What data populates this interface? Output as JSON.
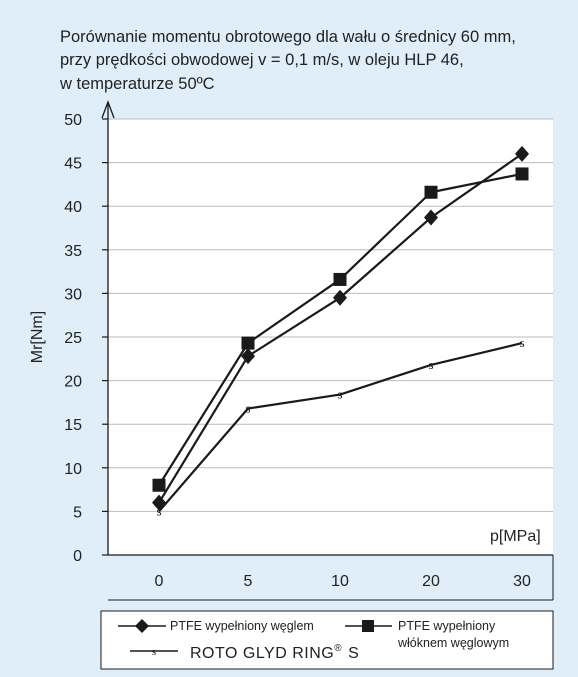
{
  "chart_data": {
    "type": "line",
    "title_lines": [
      "Porównanie momentu obrotowego dla wału o średnicy 60 mm,",
      "przy prędkości obwodowej v = 0,1 m/s, w oleju HLP 46,",
      "w temperaturze 50ºC"
    ],
    "xlabel": "p[MPa]",
    "ylabel": "Mr[Nm]",
    "categories": [
      "0",
      "5",
      "10",
      "20",
      "30"
    ],
    "ylim": [
      0,
      50
    ],
    "yticks": [
      0,
      5,
      10,
      15,
      20,
      25,
      30,
      35,
      40,
      45,
      50
    ],
    "grid": "horizontal",
    "legend_position": "bottom",
    "series": [
      {
        "name": "PTFE wypełniony węglem",
        "marker": "diamond",
        "values": [
          6,
          22.8,
          29.5,
          38.7,
          46
        ]
      },
      {
        "name": "PTFE wypełniony włóknem węglowym",
        "name_lines": [
          "PTFE wypełniony",
          "włóknem węglowym"
        ],
        "marker": "square",
        "values": [
          8,
          24.3,
          31.6,
          41.6,
          43.7
        ]
      },
      {
        "name": "ROTO GLYD RING® S",
        "name_main": "ROTO GLYD RING",
        "name_sup": "®",
        "name_tail": "S",
        "marker": "s",
        "values": [
          5,
          16.8,
          18.4,
          21.8,
          24.3
        ]
      }
    ],
    "colors": {
      "background": "#dfeef8",
      "plot_background": "#ffffff",
      "line": "#1a1a1a",
      "grid": "#bbbbbb"
    }
  }
}
